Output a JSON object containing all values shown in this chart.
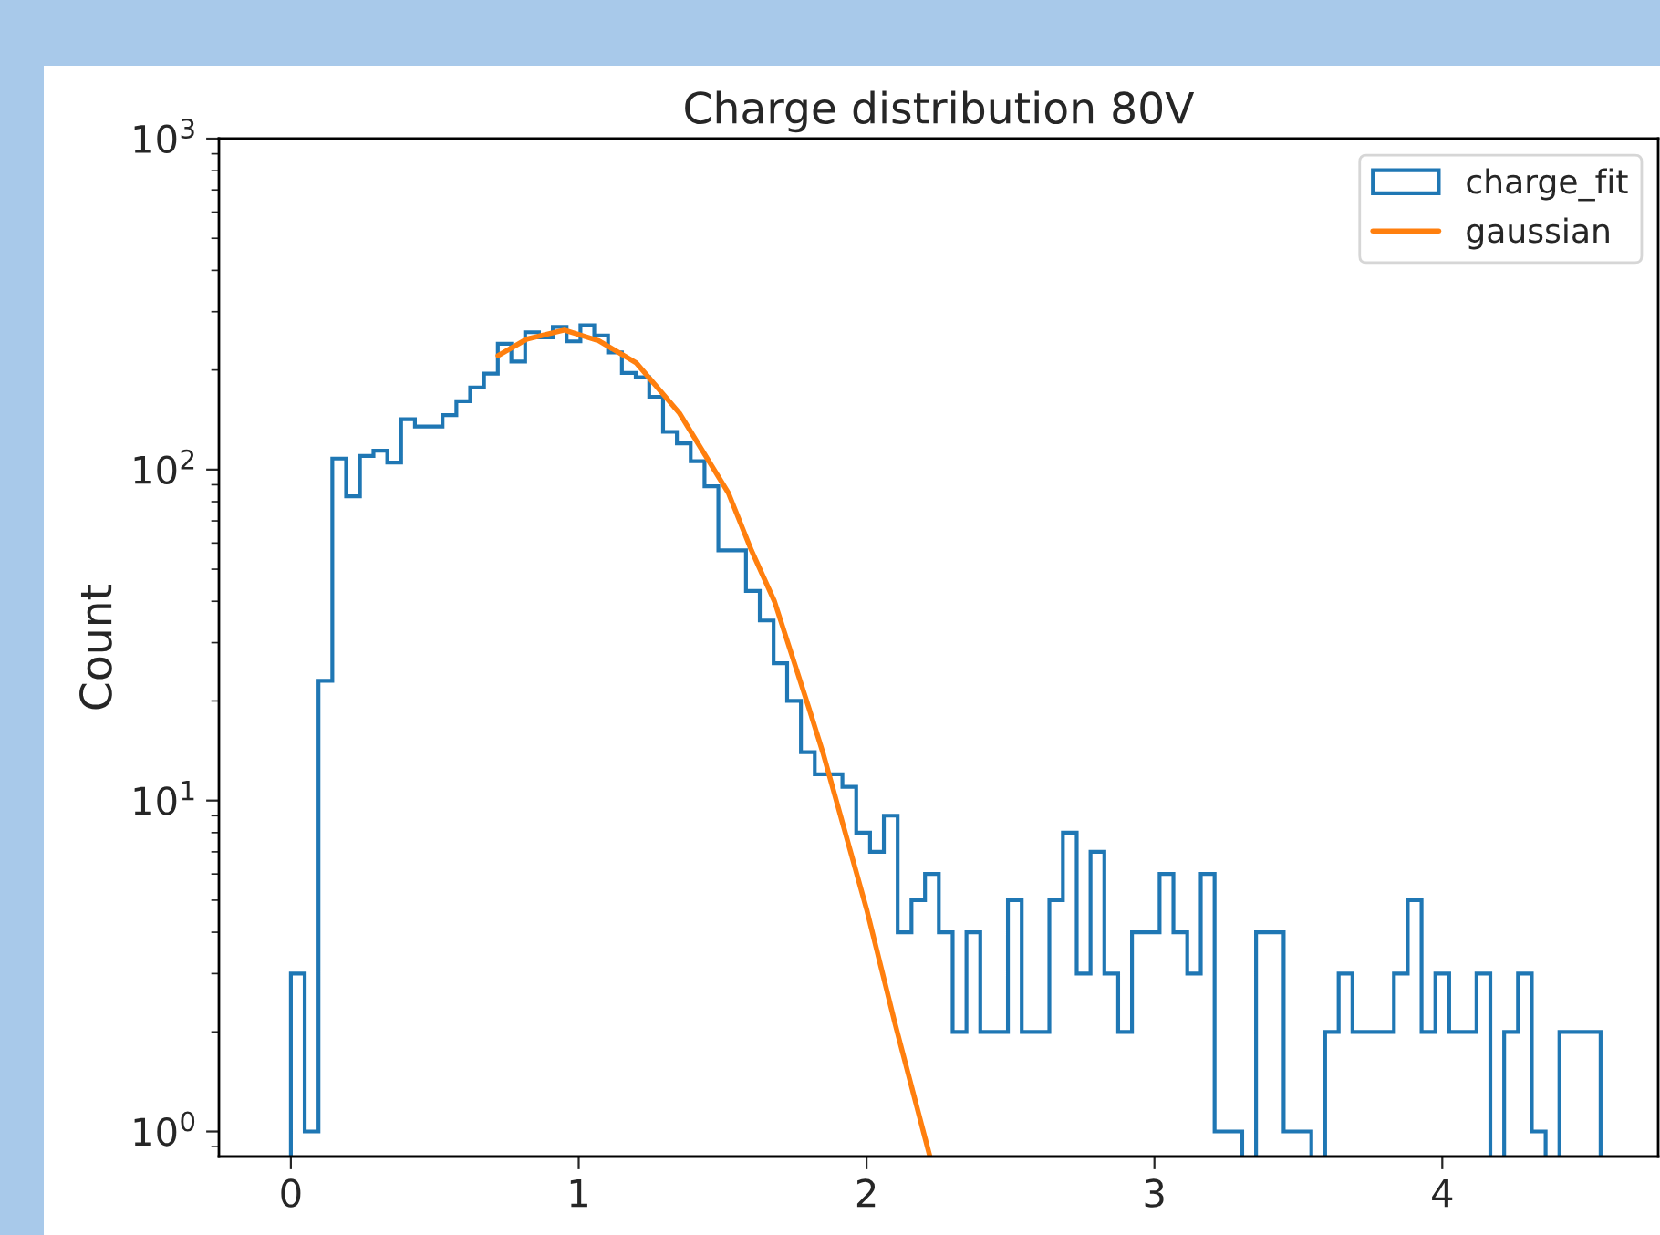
{
  "chart_data": {
    "type": "histogram",
    "title": "Charge distribution 80V",
    "ylabel": "Count",
    "log": "y",
    "legend": "top right",
    "grid": false,
    "xlim": [
      -0.25,
      4.75
    ],
    "xticks": [
      0,
      1,
      2,
      3,
      4
    ],
    "ylim": [
      0.84,
      1000
    ],
    "yticks": [
      {
        "value": 1,
        "label": "10$^{0}$"
      },
      {
        "value": 10,
        "label": "10$^{1}$"
      },
      {
        "value": 100,
        "label": "10$^{2}$"
      },
      {
        "value": 1000,
        "label": "10$^{3}$"
      }
    ],
    "bins": [
      0,
      0.048,
      0.096,
      0.144,
      0.192,
      0.24,
      0.287,
      0.335,
      0.383,
      0.431,
      0.479,
      0.527,
      0.575,
      0.623,
      0.671,
      0.719,
      0.766,
      0.814,
      0.862,
      0.91,
      0.958,
      1.006,
      1.054,
      1.102,
      1.15,
      1.198,
      1.245,
      1.293,
      1.341,
      1.389,
      1.437,
      1.485,
      1.533,
      1.581,
      1.629,
      1.677,
      1.724,
      1.772,
      1.82,
      1.868,
      1.916,
      1.964,
      2.012,
      2.06,
      2.108,
      2.156,
      2.203,
      2.251,
      2.299,
      2.347,
      2.395,
      2.443,
      2.491,
      2.539,
      2.587,
      2.635,
      2.682,
      2.73,
      2.778,
      2.826,
      2.874,
      2.922,
      2.97,
      3.018,
      3.066,
      3.114,
      3.161,
      3.209,
      3.257,
      3.305,
      3.353,
      3.401,
      3.449,
      3.497,
      3.545,
      3.593,
      3.64,
      3.688,
      3.736,
      3.784,
      3.832,
      3.88,
      3.928,
      3.976,
      4.024,
      4.072,
      4.119,
      4.167,
      4.215,
      4.263,
      4.311,
      4.359,
      4.407,
      4.455,
      4.503,
      4.55
    ],
    "series": [
      {
        "name": "charge_fit",
        "color": "#1f77b4",
        "values": [
          3,
          1,
          23,
          108,
          83,
          110,
          114,
          105,
          142,
          135,
          135,
          146,
          161,
          177,
          195,
          240,
          212,
          260,
          251,
          270,
          244,
          273,
          254,
          226,
          196,
          190,
          166,
          130,
          120,
          106,
          89,
          57,
          57,
          43,
          35,
          26,
          20,
          14,
          12,
          12,
          11,
          8,
          7,
          9,
          4,
          5,
          6,
          4,
          2,
          4,
          2,
          2,
          5,
          2,
          2,
          5,
          8,
          3,
          7,
          3,
          2,
          4,
          4,
          6,
          4,
          3,
          6,
          1,
          1,
          null,
          4,
          4,
          1,
          1,
          null,
          2,
          3,
          2,
          2,
          2,
          3,
          5,
          2,
          3,
          2,
          2,
          3,
          null,
          2,
          3,
          1,
          null,
          2,
          2,
          2
        ]
      },
      {
        "name": "gaussian",
        "type": "line",
        "color": "#ff7f0e",
        "x": [
          0.72,
          0.82,
          0.95,
          1.07,
          1.2,
          1.35,
          1.52,
          1.6,
          1.68,
          1.8,
          1.85,
          2.0,
          2.1,
          2.22
        ],
        "values": [
          221,
          248,
          264,
          245,
          210,
          148,
          85,
          57,
          40,
          19,
          13.8,
          4.7,
          2.1,
          0.84
        ]
      }
    ]
  }
}
